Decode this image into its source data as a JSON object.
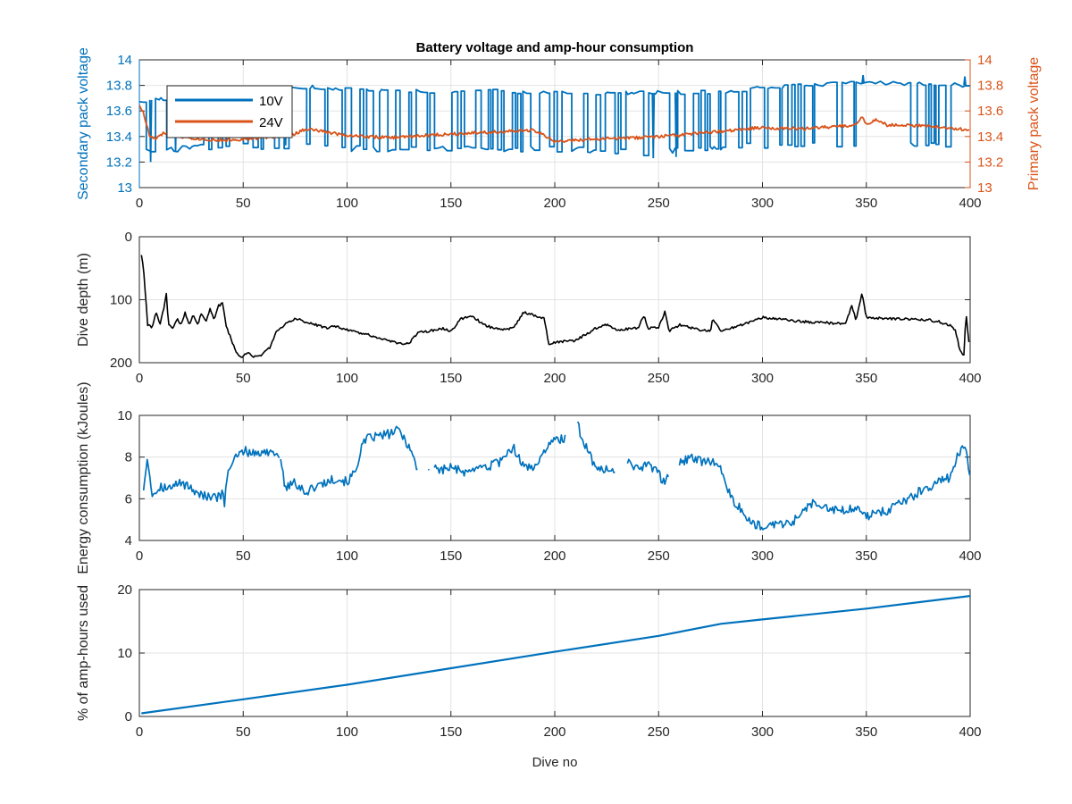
{
  "figure": {
    "title": "Battery voltage and amp-hour consumption"
  },
  "colors": {
    "blue": "#0072BD",
    "orange": "#D95319",
    "black": "#000000",
    "grid": "#e3e3e3",
    "axis": "#262626"
  },
  "chart_data": [
    {
      "id": "voltage",
      "type": "line",
      "title": "Battery voltage and amp-hour consumption",
      "xlim": [
        0,
        400
      ],
      "xticks": [
        0,
        50,
        100,
        150,
        200,
        250,
        300,
        350,
        400
      ],
      "ylabel_left": "Secondary pack voltage",
      "ylabel_right": "Primary pack voltage",
      "ylim_left": [
        13,
        14
      ],
      "ylim_right": [
        13,
        14
      ],
      "yticks_left": [
        "13",
        "13.2",
        "13.4",
        "13.6",
        "13.8",
        "14"
      ],
      "yticks_right": [
        "13",
        "13.2",
        "13.4",
        "13.6",
        "13.8",
        "14"
      ],
      "grid": true,
      "legend": {
        "placement": "top-left",
        "entries": [
          "10V",
          "24V"
        ]
      },
      "series": [
        {
          "name": "10V",
          "axis": "left",
          "color": "#0072BD",
          "style": "square-wave",
          "high": [
            [
              0,
              13.68
            ],
            [
              40,
              13.73
            ],
            [
              80,
              13.79
            ],
            [
              120,
              13.75
            ],
            [
              160,
              13.76
            ],
            [
              200,
              13.74
            ],
            [
              240,
              13.74
            ],
            [
              280,
              13.75
            ],
            [
              300,
              13.78
            ],
            [
              340,
              13.82
            ],
            [
              360,
              13.82
            ],
            [
              400,
              13.8
            ]
          ],
          "low": [
            [
              0,
              13.27
            ],
            [
              40,
              13.33
            ],
            [
              80,
              13.32
            ],
            [
              120,
              13.3
            ],
            [
              160,
              13.3
            ],
            [
              200,
              13.3
            ],
            [
              240,
              13.27
            ],
            [
              280,
              13.32
            ],
            [
              320,
              13.33
            ],
            [
              360,
              13.33
            ],
            [
              400,
              13.35
            ]
          ],
          "spikes_low": [
            [
              5,
              13.2
            ],
            [
              17,
              13.28
            ],
            [
              70,
              13.33
            ],
            [
              247,
              13.23
            ],
            [
              258,
              13.24
            ]
          ],
          "spikes_high": [
            [
              348,
              13.88
            ],
            [
              397,
              13.87
            ]
          ],
          "low_fraction": [
            [
              0,
              0.7
            ],
            [
              25,
              0.82
            ],
            [
              50,
              0.55
            ],
            [
              65,
              0.2
            ],
            [
              78,
              0.05
            ],
            [
              90,
              0.35
            ],
            [
              130,
              0.48
            ],
            [
              200,
              0.45
            ],
            [
              250,
              0.45
            ],
            [
              290,
              0.4
            ],
            [
              320,
              0.35
            ],
            [
              345,
              0.12
            ],
            [
              360,
              0.08
            ],
            [
              375,
              0.35
            ],
            [
              400,
              0.4
            ]
          ]
        },
        {
          "name": "24V",
          "axis": "right",
          "color": "#D95319",
          "x": [
            0,
            2,
            5,
            8,
            12,
            20,
            30,
            40,
            50,
            60,
            75,
            80,
            100,
            120,
            140,
            160,
            180,
            190,
            200,
            220,
            240,
            260,
            280,
            300,
            320,
            345,
            348,
            350,
            355,
            360,
            380,
            395,
            400
          ],
          "values": [
            13.65,
            13.58,
            13.4,
            13.38,
            13.43,
            13.4,
            13.38,
            13.37,
            13.38,
            13.39,
            13.42,
            13.46,
            13.41,
            13.39,
            13.41,
            13.43,
            13.44,
            13.45,
            13.36,
            13.38,
            13.39,
            13.41,
            13.44,
            13.47,
            13.46,
            13.49,
            13.56,
            13.5,
            13.53,
            13.49,
            13.48,
            13.46,
            13.44
          ]
        }
      ]
    },
    {
      "id": "depth",
      "type": "line",
      "xlim": [
        0,
        400
      ],
      "xticks": [
        0,
        50,
        100,
        150,
        200,
        250,
        300,
        350,
        400
      ],
      "ylabel": "Dive depth (m)",
      "ylim": [
        200,
        0
      ],
      "yticks": [
        0,
        100,
        200
      ],
      "reversed": true,
      "grid": true,
      "series": [
        {
          "name": "",
          "color": "#000000",
          "x": [
            1,
            2,
            4,
            6,
            8,
            10,
            12,
            13,
            14,
            16,
            18,
            20,
            22,
            24,
            26,
            28,
            30,
            32,
            34,
            36,
            38,
            40,
            42,
            44,
            46,
            48,
            50,
            52,
            55,
            58,
            60,
            63,
            66,
            70,
            75,
            80,
            85,
            90,
            95,
            100,
            110,
            120,
            125,
            130,
            135,
            140,
            145,
            150,
            155,
            160,
            165,
            170,
            175,
            180,
            183,
            185,
            190,
            195,
            197,
            200,
            210,
            215,
            220,
            225,
            230,
            240,
            243,
            245,
            250,
            253,
            255,
            260,
            270,
            275,
            276,
            280,
            290,
            300,
            320,
            340,
            343,
            345,
            348,
            350,
            352,
            360,
            380,
            385,
            390,
            393,
            395,
            397,
            398,
            400
          ],
          "values": [
            30,
            50,
            140,
            145,
            120,
            140,
            110,
            90,
            140,
            145,
            130,
            140,
            120,
            140,
            125,
            140,
            120,
            135,
            115,
            130,
            110,
            105,
            145,
            160,
            180,
            190,
            190,
            185,
            190,
            190,
            185,
            175,
            150,
            140,
            130,
            135,
            140,
            145,
            142,
            148,
            155,
            165,
            170,
            168,
            150,
            150,
            145,
            150,
            130,
            125,
            138,
            145,
            148,
            145,
            130,
            120,
            125,
            130,
            170,
            168,
            165,
            155,
            145,
            140,
            148,
            145,
            125,
            145,
            145,
            120,
            150,
            140,
            148,
            150,
            132,
            150,
            140,
            128,
            135,
            138,
            110,
            132,
            90,
            128,
            128,
            130,
            132,
            135,
            140,
            150,
            180,
            188,
            120,
            188
          ]
        }
      ]
    },
    {
      "id": "energy",
      "type": "line",
      "xlim": [
        0,
        400
      ],
      "xticks": [
        0,
        50,
        100,
        150,
        200,
        250,
        300,
        350,
        400
      ],
      "ylabel": "Energy consumption (kJoules)",
      "ylim": [
        4,
        10
      ],
      "yticks": [
        4,
        6,
        8,
        10
      ],
      "grid": true,
      "series": [
        {
          "name": "",
          "color": "#0072BD",
          "segments": [
            {
              "x": [
                2,
                4,
                6,
                10,
                15,
                20,
                25,
                30,
                35,
                40,
                41,
                43,
                47,
                50,
                55,
                60,
                65,
                68
              ],
              "values": [
                6.5,
                8.1,
                6.2,
                6.6,
                6.5,
                6.8,
                6.5,
                6.2,
                6.0,
                6.2,
                5.8,
                7.5,
                8.0,
                8.3,
                8.2,
                8.2,
                8.3,
                8.0
              ]
            },
            {
              "x": [
                68,
                70,
                75,
                80,
                85,
                90,
                95,
                100,
                104,
                107,
                110,
                115,
                120,
                125,
                130,
                134
              ],
              "values": [
                8.0,
                6.5,
                6.8,
                6.3,
                6.6,
                6.8,
                7.0,
                6.8,
                7.3,
                8.5,
                8.9,
                9.0,
                9.1,
                9.3,
                8.5,
                7.4
              ]
            },
            {
              "x": [
                139,
                140
              ],
              "values": [
                7.5,
                7.3
              ]
            },
            {
              "x": [
                142,
                145,
                150,
                155,
                160,
                165,
                170,
                175,
                180,
                185,
                190,
                195,
                200,
                204,
                205
              ],
              "values": [
                7.6,
                7.4,
                7.5,
                7.3,
                7.2,
                7.5,
                7.6,
                7.8,
                8.5,
                7.5,
                7.5,
                8.3,
                8.8,
                8.9,
                8.9
              ]
            },
            {
              "x": [
                211,
                213,
                215,
                218,
                220,
                225,
                229
              ],
              "values": [
                9.8,
                8.8,
                8.5,
                7.8,
                7.3,
                7.5,
                7.3
              ]
            },
            {
              "x": [
                235,
                240,
                245,
                250,
                252,
                255
              ],
              "values": [
                7.8,
                7.4,
                7.6,
                7.3,
                6.7,
                7.3
              ]
            },
            {
              "x": [
                260,
                265,
                270,
                275,
                280,
                285,
                290,
                295,
                300,
                305,
                310,
                315,
                320,
                325,
                330,
                335,
                340,
                345,
                350,
                355,
                360,
                365,
                370,
                375,
                380,
                385,
                390,
                395,
                398,
                400
              ],
              "values": [
                7.7,
                8.0,
                7.8,
                7.8,
                7.5,
                6.0,
                5.5,
                4.8,
                4.7,
                4.7,
                4.8,
                4.9,
                5.5,
                5.8,
                5.7,
                5.5,
                5.5,
                5.6,
                5.2,
                5.3,
                5.4,
                5.8,
                6.0,
                6.3,
                6.5,
                6.8,
                7.0,
                8.3,
                8.5,
                6.8
              ]
            }
          ]
        }
      ]
    },
    {
      "id": "amphours",
      "type": "line",
      "xlim": [
        0,
        400
      ],
      "xticks": [
        0,
        50,
        100,
        150,
        200,
        250,
        300,
        350,
        400
      ],
      "xlabel": "Dive no",
      "ylabel": "% of amp-hours used",
      "ylim": [
        0,
        20
      ],
      "yticks": [
        0,
        10,
        20
      ],
      "grid": true,
      "series": [
        {
          "name": "",
          "color": "#0072BD",
          "x": [
            1,
            50,
            100,
            150,
            200,
            250,
            280,
            300,
            350,
            400
          ],
          "values": [
            0.5,
            2.7,
            5.0,
            7.6,
            10.2,
            12.7,
            14.6,
            15.3,
            17.0,
            19.0
          ]
        }
      ]
    }
  ]
}
